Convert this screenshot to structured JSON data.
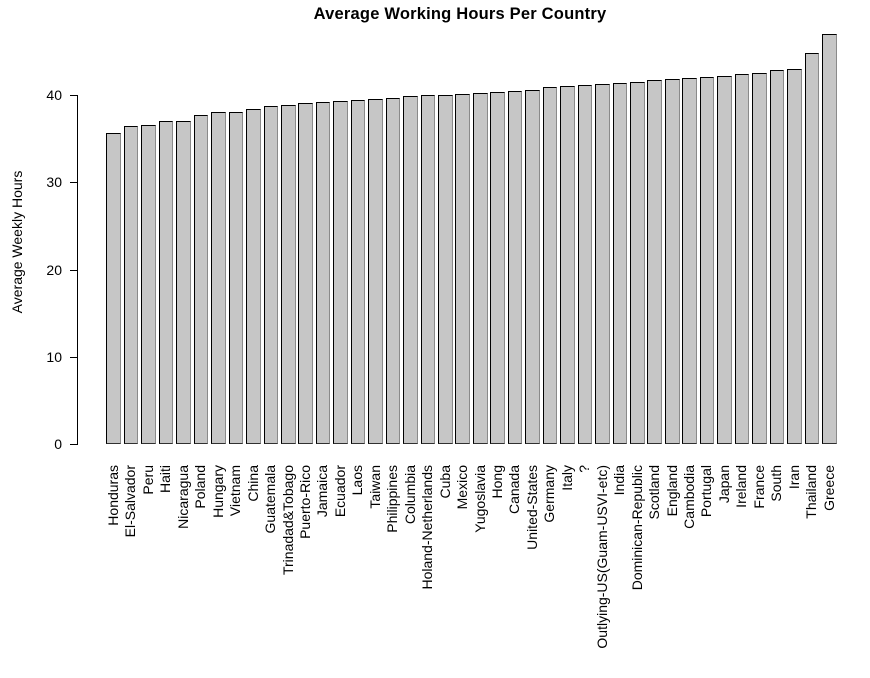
{
  "chart_data": {
    "type": "bar",
    "title": "Average Working Hours Per Country",
    "ylabel": "Average Weekly Hours",
    "xlabel": "",
    "ylim": [
      0,
      47
    ],
    "yticks": [
      0,
      10,
      20,
      30,
      40
    ],
    "grid": false,
    "legend_position": "none",
    "bar_fill": "#C6C6C6",
    "bar_border": "#000000",
    "categories": [
      "Honduras",
      "El-Salvador",
      "Peru",
      "Haiti",
      "Nicaragua",
      "Poland",
      "Hungary",
      "Vietnam",
      "China",
      "Guatemala",
      "Trinadad&Tobago",
      "Puerto-Rico",
      "Jamaica",
      "Ecuador",
      "Laos",
      "Taiwan",
      "Philippines",
      "Columbia",
      "Holand-Netherlands",
      "Cuba",
      "Mexico",
      "Yugoslavia",
      "Hong",
      "Canada",
      "United-States",
      "Germany",
      "Italy",
      "?",
      "Outlying-US(Guam-USVI-etc)",
      "India",
      "Dominican-Republic",
      "Scotland",
      "England",
      "Cambodia",
      "Portugal",
      "Japan",
      "Ireland",
      "France",
      "South",
      "Iran",
      "Thailand",
      "Greece"
    ],
    "values": [
      35.7,
      36.4,
      36.6,
      37.0,
      37.0,
      37.7,
      38.0,
      38.1,
      38.4,
      38.7,
      38.9,
      39.1,
      39.2,
      39.3,
      39.4,
      39.5,
      39.7,
      39.9,
      40.0,
      40.0,
      40.1,
      40.2,
      40.4,
      40.5,
      40.6,
      40.9,
      41.0,
      41.1,
      41.3,
      41.4,
      41.5,
      41.7,
      41.8,
      41.9,
      42.1,
      42.2,
      42.4,
      42.5,
      42.9,
      43.0,
      44.8,
      47.0
    ]
  }
}
